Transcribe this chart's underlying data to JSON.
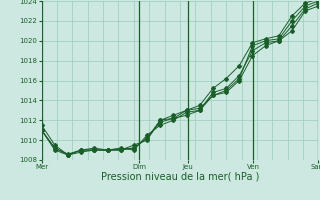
{
  "xlabel": "Pression niveau de la mer( hPa )",
  "ylim": [
    1008,
    1024
  ],
  "yticks": [
    1008,
    1010,
    1012,
    1014,
    1016,
    1018,
    1020,
    1022,
    1024
  ],
  "xtick_labels": [
    "Mer",
    "",
    "Dim",
    "Jeu",
    "",
    "Ven",
    "",
    "Sam"
  ],
  "xtick_positions": [
    0,
    3,
    6,
    9,
    11,
    13,
    15,
    17
  ],
  "day_vlines": [
    0,
    6,
    9,
    13,
    17
  ],
  "bg_color": "#cce8e0",
  "grid_color": "#99ccbb",
  "line_color": "#1a5e2a",
  "series": [
    [
      1011.0,
      1009.2,
      1008.6,
      1009.0,
      1009.0,
      1009.0,
      1009.1,
      1009.2,
      1010.2,
      1012.0,
      1012.5,
      1013.0,
      1013.2,
      1014.5,
      1015.0,
      1016.2,
      1019.5,
      1020.0,
      1020.2,
      1022.0,
      1023.5,
      1024.0
    ],
    [
      1011.0,
      1009.2,
      1008.5,
      1008.8,
      1009.0,
      1009.0,
      1009.0,
      1009.2,
      1010.2,
      1011.8,
      1012.2,
      1012.5,
      1013.0,
      1014.8,
      1015.2,
      1016.5,
      1019.0,
      1019.8,
      1020.0,
      1021.5,
      1023.2,
      1023.8
    ],
    [
      1011.5,
      1009.5,
      1008.5,
      1009.0,
      1009.2,
      1009.0,
      1009.0,
      1009.5,
      1010.0,
      1012.0,
      1012.2,
      1013.0,
      1013.5,
      1015.2,
      1016.2,
      1017.5,
      1019.8,
      1020.2,
      1020.5,
      1022.5,
      1023.8,
      1024.2
    ],
    [
      1011.0,
      1009.0,
      1008.5,
      1009.0,
      1009.0,
      1009.0,
      1009.2,
      1009.0,
      1010.5,
      1011.5,
      1012.0,
      1012.8,
      1013.0,
      1014.5,
      1014.8,
      1016.0,
      1018.5,
      1019.5,
      1020.0,
      1021.0,
      1023.0,
      1023.5
    ]
  ],
  "n_points": 22,
  "n_minor_vgrid": 18,
  "n_minor_hgrid": 9,
  "xlabel_fontsize": 7,
  "tick_fontsize": 5,
  "marker_size": 2.0,
  "line_width": 0.7
}
